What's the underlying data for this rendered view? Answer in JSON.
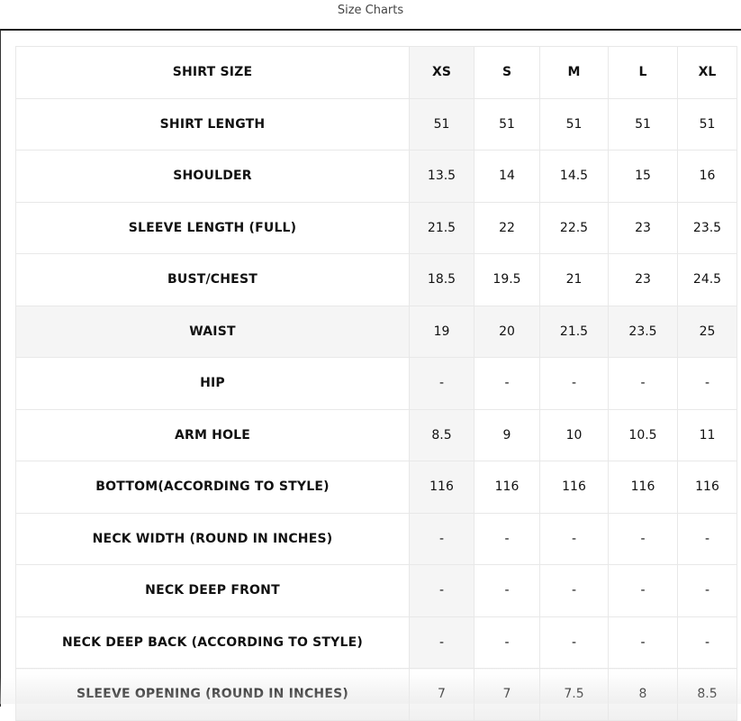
{
  "header": {
    "title": "Size Charts"
  },
  "table": {
    "columns": [
      "SHIRT SIZE",
      "XS",
      "S",
      "M",
      "L",
      "XL"
    ],
    "rows": [
      {
        "label": "SHIRT LENGTH",
        "values": [
          "51",
          "51",
          "51",
          "51",
          "51"
        ]
      },
      {
        "label": "SHOULDER",
        "values": [
          "13.5",
          "14",
          "14.5",
          "15",
          "16"
        ]
      },
      {
        "label": "SLEEVE LENGTH (FULL)",
        "values": [
          "21.5",
          "22",
          "22.5",
          "23",
          "23.5"
        ]
      },
      {
        "label": "BUST/CHEST",
        "values": [
          "18.5",
          "19.5",
          "21",
          "23",
          "24.5"
        ]
      },
      {
        "label": "WAIST",
        "values": [
          "19",
          "20",
          "21.5",
          "23.5",
          "25"
        ]
      },
      {
        "label": "HIP",
        "values": [
          "-",
          "-",
          "-",
          "-",
          "-"
        ]
      },
      {
        "label": "ARM HOLE",
        "values": [
          "8.5",
          "9",
          "10",
          "10.5",
          "11"
        ]
      },
      {
        "label": "BOTTOM(ACCORDING TO STYLE)",
        "values": [
          "116",
          "116",
          "116",
          "116",
          "116"
        ]
      },
      {
        "label": "NECK WIDTH (ROUND IN INCHES)",
        "values": [
          "-",
          "-",
          "-",
          "-",
          "-"
        ]
      },
      {
        "label": "NECK DEEP FRONT",
        "values": [
          "-",
          "-",
          "-",
          "-",
          "-"
        ]
      },
      {
        "label": "NECK DEEP BACK (ACCORDING TO STYLE)",
        "values": [
          "-",
          "-",
          "-",
          "-",
          "-"
        ]
      },
      {
        "label": "SLEEVE OPENING (ROUND IN INCHES)",
        "values": [
          "7",
          "7",
          "7.5",
          "8",
          "8.5"
        ]
      }
    ]
  }
}
